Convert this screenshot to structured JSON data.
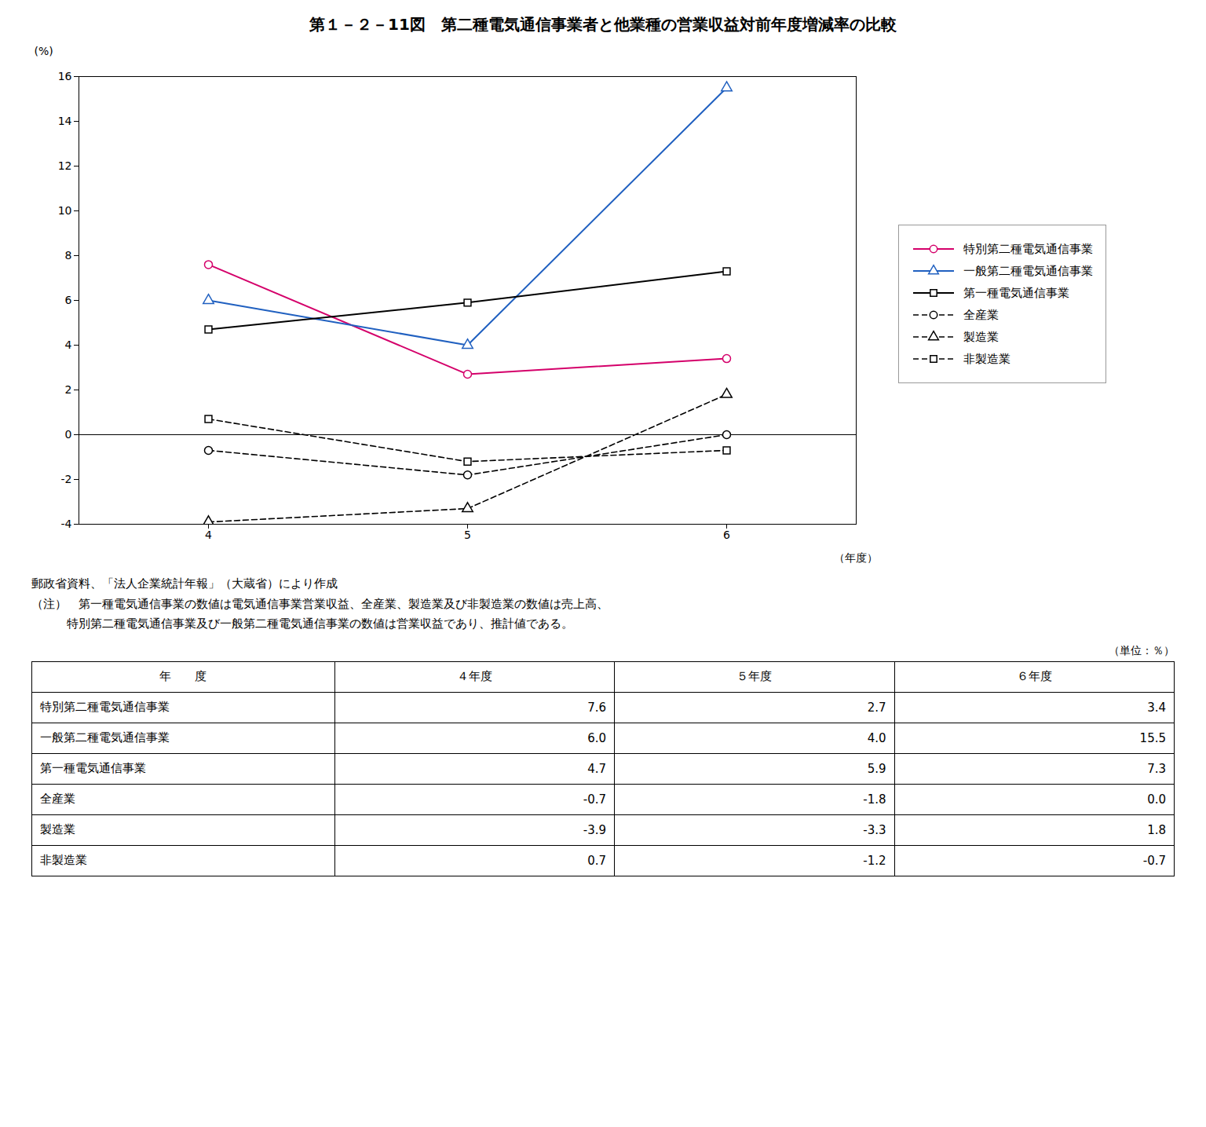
{
  "chart_data": {
    "type": "line",
    "title": "第１－２－11図　第二種電気通信事業者と他業種の営業収益対前年度増減率の比較",
    "x_label": "（年度）",
    "y_label": "(%)",
    "x": [
      4,
      5,
      6
    ],
    "xlim": [
      3.5,
      6.5
    ],
    "xticks": [
      4,
      5,
      6
    ],
    "ylim": [
      -4,
      16
    ],
    "yticks": [
      -4,
      -2,
      0,
      2,
      4,
      6,
      8,
      10,
      12,
      14,
      16
    ],
    "grid": false,
    "legend": "right",
    "series": [
      {
        "name": "特別第二種電気通信事業",
        "color": "#D4006A",
        "marker": "circle",
        "line_style": "solid",
        "values": [
          7.6,
          2.7,
          3.4
        ]
      },
      {
        "name": "一般第二種電気通信事業",
        "color": "#2060C0",
        "marker": "triangle",
        "line_style": "solid",
        "values": [
          6.0,
          4.0,
          15.5
        ]
      },
      {
        "name": "第一種電気通信事業",
        "color": "#000000",
        "marker": "square",
        "line_style": "solid",
        "values": [
          4.7,
          5.9,
          7.3
        ]
      },
      {
        "name": "全産業",
        "color": "#000000",
        "marker": "circle",
        "line_style": "dashed",
        "values": [
          -0.7,
          -1.8,
          0.0
        ]
      },
      {
        "name": "製造業",
        "color": "#000000",
        "marker": "triangle",
        "line_style": "dashed",
        "values": [
          -3.9,
          -3.3,
          1.8
        ]
      },
      {
        "name": "非製造業",
        "color": "#000000",
        "marker": "square",
        "line_style": "dashed",
        "values": [
          0.7,
          -1.2,
          -0.7
        ]
      }
    ],
    "annotations": [
      "郵政省資料、「法人企業統計年報」（大蔵省）により作成",
      "（注）　第一種電気通信事業の数値は電気通信事業営業収益、全産業、製造業及び非製造業の数値は売上高、",
      "　　　特別第二種電気通信事業及び一般第二種電気通信事業の数値は営業収益であり、推計値である。"
    ],
    "table": {
      "unit_label": "（単位：％）",
      "header": [
        "年　　度",
        "４年度",
        "５年度",
        "６年度"
      ],
      "rows": [
        [
          "特別第二種電気通信事業",
          "7.6",
          "2.7",
          "3.4"
        ],
        [
          "一般第二種電気通信事業",
          "6.0",
          "4.0",
          "15.5"
        ],
        [
          "第一種電気通信事業",
          "4.7",
          "5.9",
          "7.3"
        ],
        [
          "全産業",
          "-0.7",
          "-1.8",
          "0.0"
        ],
        [
          "製造業",
          "-3.9",
          "-3.3",
          "1.8"
        ],
        [
          "非製造業",
          "0.7",
          "-1.2",
          "-0.7"
        ]
      ]
    }
  }
}
